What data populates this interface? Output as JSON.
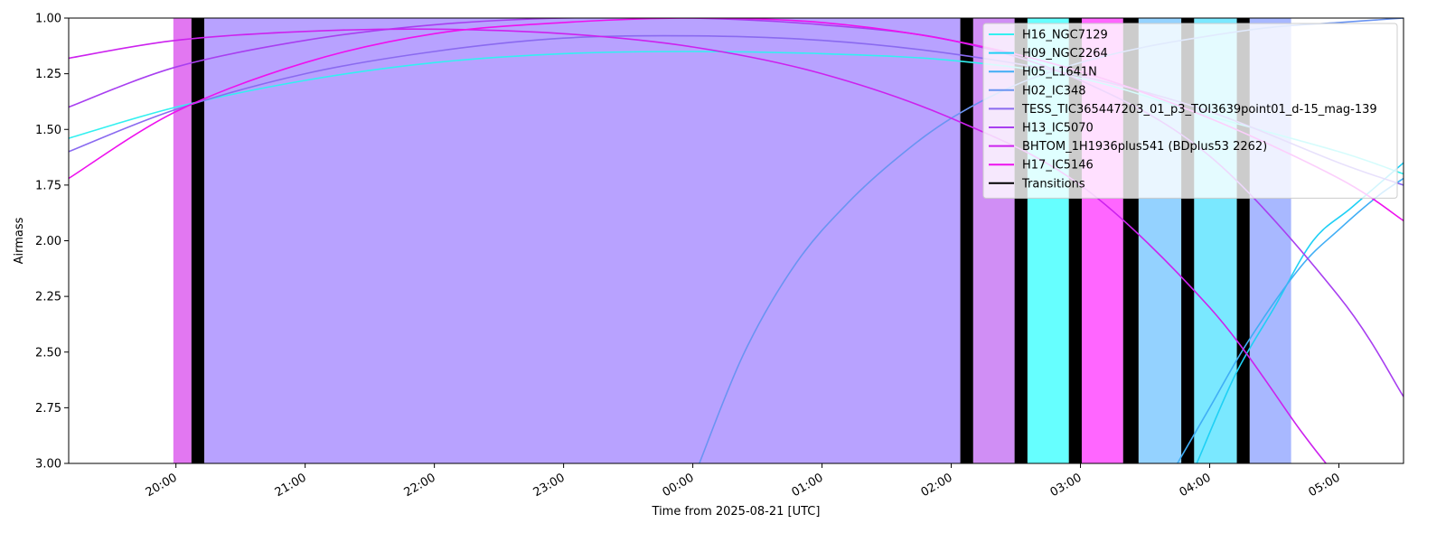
{
  "chart_data": {
    "type": "line",
    "title": "",
    "xlabel": "Time from 2025-08-21 [UTC]",
    "ylabel": "Airmass",
    "x_unit": "hours UTC relative to 2025-08-21 00:00",
    "xlim": [
      -4.83,
      5.5
    ],
    "ylim": [
      3.0,
      1.0
    ],
    "y_inverted": true,
    "grid": false,
    "legend_position": "upper right",
    "x_ticks": [
      {
        "value": -4,
        "label": "20:00"
      },
      {
        "value": -3,
        "label": "21:00"
      },
      {
        "value": -2,
        "label": "22:00"
      },
      {
        "value": -1,
        "label": "23:00"
      },
      {
        "value": 0,
        "label": "00:00"
      },
      {
        "value": 1,
        "label": "01:00"
      },
      {
        "value": 2,
        "label": "02:00"
      },
      {
        "value": 3,
        "label": "03:00"
      },
      {
        "value": 4,
        "label": "04:00"
      },
      {
        "value": 5,
        "label": "05:00"
      }
    ],
    "y_ticks": [
      {
        "value": 1.0,
        "label": "1.00"
      },
      {
        "value": 1.25,
        "label": "1.25"
      },
      {
        "value": 1.5,
        "label": "1.50"
      },
      {
        "value": 1.75,
        "label": "1.75"
      },
      {
        "value": 2.0,
        "label": "2.00"
      },
      {
        "value": 2.25,
        "label": "2.25"
      },
      {
        "value": 2.5,
        "label": "2.50"
      },
      {
        "value": 2.75,
        "label": "2.75"
      },
      {
        "value": 3.0,
        "label": "3.00"
      }
    ],
    "series": [
      {
        "name": "H16_NGC7129",
        "color": "#33f0f0",
        "points": [
          [
            -4.83,
            1.54
          ],
          [
            -4,
            1.4
          ],
          [
            -3,
            1.28
          ],
          [
            -2,
            1.2
          ],
          [
            -1,
            1.16
          ],
          [
            0,
            1.15
          ],
          [
            1,
            1.16
          ],
          [
            2,
            1.19
          ],
          [
            3,
            1.27
          ],
          [
            4,
            1.44
          ],
          [
            5,
            1.6
          ],
          [
            5.5,
            1.7
          ]
        ]
      },
      {
        "name": "H09_NGC2264",
        "color": "#1fd0f5",
        "points": [
          [
            3.9,
            3.0
          ],
          [
            4.2,
            2.6
          ],
          [
            4.5,
            2.3
          ],
          [
            4.8,
            2.0
          ],
          [
            5.1,
            1.85
          ],
          [
            5.5,
            1.65
          ]
        ]
      },
      {
        "name": "H05_L1641N",
        "color": "#40aef5",
        "points": [
          [
            3.75,
            3.0
          ],
          [
            4.0,
            2.75
          ],
          [
            4.3,
            2.45
          ],
          [
            4.7,
            2.12
          ],
          [
            5.0,
            1.95
          ],
          [
            5.3,
            1.8
          ],
          [
            5.5,
            1.72
          ]
        ]
      },
      {
        "name": "H02_IC348",
        "color": "#6a94f2",
        "points": [
          [
            0.05,
            3.0
          ],
          [
            0.4,
            2.5
          ],
          [
            0.8,
            2.1
          ],
          [
            1.2,
            1.83
          ],
          [
            1.6,
            1.62
          ],
          [
            2.0,
            1.45
          ],
          [
            2.5,
            1.3
          ],
          [
            3.0,
            1.2
          ],
          [
            3.5,
            1.13
          ],
          [
            4.0,
            1.08
          ],
          [
            4.5,
            1.04
          ],
          [
            5.0,
            1.02
          ],
          [
            5.5,
            1.0
          ]
        ]
      },
      {
        "name": "TESS_TIC365447203_01_p3_TOI3639point01_d-15_mag-139",
        "color": "#8a6af0",
        "points": [
          [
            -4.83,
            1.6
          ],
          [
            -4,
            1.41
          ],
          [
            -3,
            1.25
          ],
          [
            -2,
            1.15
          ],
          [
            -1,
            1.09
          ],
          [
            0,
            1.08
          ],
          [
            1,
            1.1
          ],
          [
            2,
            1.16
          ],
          [
            3,
            1.26
          ],
          [
            4,
            1.42
          ],
          [
            5,
            1.65
          ],
          [
            5.5,
            1.75
          ]
        ]
      },
      {
        "name": "H13_IC5070",
        "color": "#a83ff0",
        "points": [
          [
            -4.83,
            1.4
          ],
          [
            -4,
            1.22
          ],
          [
            -3,
            1.1
          ],
          [
            -2,
            1.03
          ],
          [
            -1,
            1.0
          ],
          [
            0,
            1.0
          ],
          [
            1,
            1.03
          ],
          [
            2,
            1.1
          ],
          [
            3,
            1.28
          ],
          [
            4,
            1.62
          ],
          [
            5,
            2.25
          ],
          [
            5.5,
            2.7
          ]
        ]
      },
      {
        "name": "BHTOM_1H1936plus541 (BDplus53 2262)",
        "color": "#cc22ee",
        "points": [
          [
            -4.83,
            1.18
          ],
          [
            -4,
            1.1
          ],
          [
            -3,
            1.06
          ],
          [
            -2,
            1.05
          ],
          [
            -1,
            1.07
          ],
          [
            0,
            1.13
          ],
          [
            1,
            1.25
          ],
          [
            2,
            1.45
          ],
          [
            3,
            1.75
          ],
          [
            4,
            2.3
          ],
          [
            4.7,
            2.85
          ],
          [
            4.9,
            3.0
          ]
        ]
      },
      {
        "name": "H17_IC5146",
        "color": "#ee11ee",
        "points": [
          [
            -4.83,
            1.72
          ],
          [
            -4,
            1.42
          ],
          [
            -3,
            1.2
          ],
          [
            -2,
            1.07
          ],
          [
            -1,
            1.02
          ],
          [
            0,
            1.0
          ],
          [
            1,
            1.02
          ],
          [
            2,
            1.1
          ],
          [
            3,
            1.24
          ],
          [
            4,
            1.45
          ],
          [
            5,
            1.72
          ],
          [
            5.5,
            1.91
          ]
        ]
      }
    ],
    "transitions_legend": {
      "name": "Transitions",
      "color": "#000000"
    },
    "spans": [
      {
        "x0": -4.02,
        "x1": -3.88,
        "color": "#e070f0",
        "alpha": 0.95
      },
      {
        "x0": -3.88,
        "x1": -3.78,
        "color": "#000000",
        "alpha": 1
      },
      {
        "x0": -3.78,
        "x1": 2.07,
        "color": "#b8a2ff",
        "alpha": 1
      },
      {
        "x0": 2.07,
        "x1": 2.17,
        "color": "#000000",
        "alpha": 1
      },
      {
        "x0": 2.17,
        "x1": 2.49,
        "color": "#d08ef5",
        "alpha": 1
      },
      {
        "x0": 2.49,
        "x1": 2.59,
        "color": "#000000",
        "alpha": 1
      },
      {
        "x0": 2.59,
        "x1": 2.91,
        "color": "#66ffff",
        "alpha": 1
      },
      {
        "x0": 2.91,
        "x1": 3.01,
        "color": "#000000",
        "alpha": 1
      },
      {
        "x0": 3.01,
        "x1": 3.33,
        "color": "#ff66ff",
        "alpha": 1
      },
      {
        "x0": 3.33,
        "x1": 3.45,
        "color": "#000000",
        "alpha": 1
      },
      {
        "x0": 3.45,
        "x1": 3.78,
        "color": "#94d2ff",
        "alpha": 1
      },
      {
        "x0": 3.78,
        "x1": 3.88,
        "color": "#000000",
        "alpha": 1
      },
      {
        "x0": 3.88,
        "x1": 4.21,
        "color": "#7ae8ff",
        "alpha": 1
      },
      {
        "x0": 4.21,
        "x1": 4.31,
        "color": "#000000",
        "alpha": 1
      },
      {
        "x0": 4.31,
        "x1": 4.63,
        "color": "#a8b8ff",
        "alpha": 1
      }
    ]
  }
}
